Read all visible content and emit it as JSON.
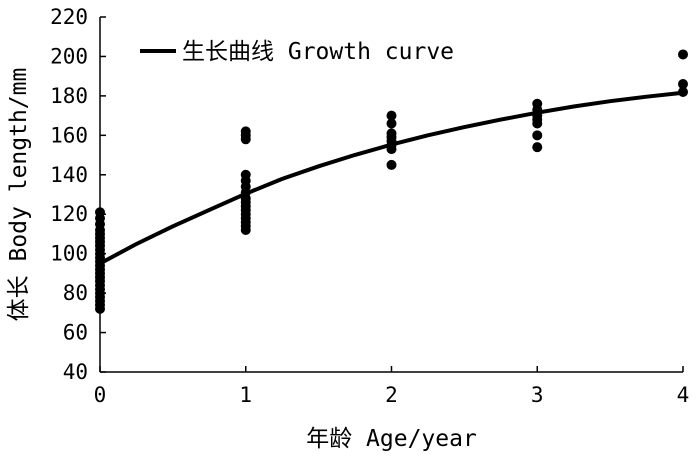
{
  "chart_data": {
    "type": "scatter",
    "title": "",
    "xlabel": "年龄 Age/year",
    "ylabel": "体长 Body length/mm",
    "xlim": [
      0,
      4
    ],
    "ylim": [
      40,
      220
    ],
    "x_ticks": [
      "0",
      "1",
      "2",
      "3",
      "4"
    ],
    "y_ticks": [
      "40",
      "60",
      "80",
      "100",
      "120",
      "140",
      "160",
      "180",
      "200",
      "220"
    ],
    "grid": false,
    "legend": {
      "position": "top-left",
      "entries": [
        "生长曲线 Growth curve"
      ]
    },
    "series": [
      {
        "kind": "points",
        "color": "#000000",
        "points": [
          [
            0,
            121
          ],
          [
            0,
            118
          ],
          [
            0,
            115
          ],
          [
            0,
            112
          ],
          [
            0,
            110
          ],
          [
            0,
            108
          ],
          [
            0,
            106
          ],
          [
            0,
            104
          ],
          [
            0,
            102
          ],
          [
            0,
            100
          ],
          [
            0,
            98
          ],
          [
            0,
            96
          ],
          [
            0,
            94
          ],
          [
            0,
            92
          ],
          [
            0,
            90
          ],
          [
            0,
            88
          ],
          [
            0,
            86
          ],
          [
            0,
            84
          ],
          [
            0,
            82
          ],
          [
            0,
            80
          ],
          [
            0,
            78
          ],
          [
            0,
            76
          ],
          [
            0,
            74
          ],
          [
            0,
            72
          ],
          [
            1,
            162
          ],
          [
            1,
            160
          ],
          [
            1,
            158
          ],
          [
            1,
            140
          ],
          [
            1,
            137
          ],
          [
            1,
            134
          ],
          [
            1,
            131
          ],
          [
            1,
            128
          ],
          [
            1,
            126
          ],
          [
            1,
            124
          ],
          [
            1,
            122
          ],
          [
            1,
            120
          ],
          [
            1,
            118
          ],
          [
            1,
            116
          ],
          [
            1,
            114
          ],
          [
            1,
            112
          ],
          [
            2,
            170
          ],
          [
            2,
            166
          ],
          [
            2,
            161
          ],
          [
            2,
            159
          ],
          [
            2,
            157
          ],
          [
            2,
            155
          ],
          [
            2,
            153
          ],
          [
            2,
            145
          ],
          [
            3,
            176
          ],
          [
            3,
            173
          ],
          [
            3,
            170
          ],
          [
            3,
            168
          ],
          [
            3,
            166
          ],
          [
            3,
            160
          ],
          [
            3,
            154
          ],
          [
            4,
            201
          ],
          [
            4,
            186
          ],
          [
            4,
            182
          ]
        ]
      },
      {
        "name": "生长曲线 Growth curve",
        "kind": "curve",
        "color": "#000000",
        "x": [
          0,
          0.25,
          0.5,
          0.75,
          1,
          1.25,
          1.5,
          1.75,
          2,
          2.25,
          2.5,
          2.75,
          3,
          3.25,
          3.5,
          3.75,
          4
        ],
        "y": [
          95,
          104.9,
          113.9,
          122.2,
          130.4,
          137.9,
          144.3,
          150.1,
          155.3,
          160.0,
          164.2,
          168.0,
          171.5,
          174.6,
          177.3,
          179.6,
          181.6
        ]
      }
    ]
  }
}
